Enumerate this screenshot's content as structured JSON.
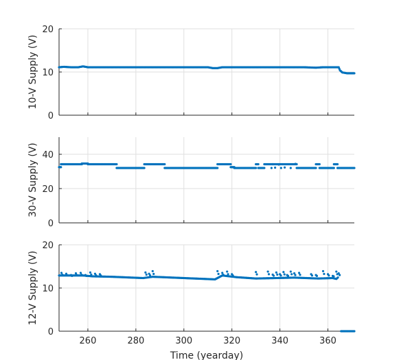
{
  "chart_data": [
    {
      "type": "scatter",
      "ylabel": "10-V Supply (V)",
      "xlabel": "",
      "xlim": [
        248,
        371
      ],
      "ylim": [
        0,
        20
      ],
      "yticks": [
        "0",
        "10",
        "20"
      ],
      "xticks": [
        "260",
        "280",
        "300",
        "320",
        "340",
        "360"
      ],
      "show_xtick_labels": false,
      "grid": true,
      "color": "#0072BD",
      "series": [
        {
          "segments": [
            [
              248,
              11.1
            ],
            [
              250,
              11.2
            ],
            [
              253,
              11.1
            ],
            [
              256,
              11.1
            ],
            [
              258,
              11.3
            ],
            [
              260,
              11.1
            ],
            [
              270,
              11.1
            ],
            [
              280,
              11.1
            ],
            [
              290,
              11.1
            ],
            [
              300,
              11.1
            ],
            [
              310,
              11.1
            ],
            [
              312,
              10.9
            ],
            [
              314,
              10.9
            ],
            [
              316,
              11.1
            ],
            [
              330,
              11.1
            ],
            [
              340,
              11.1
            ],
            [
              350,
              11.1
            ],
            [
              355,
              11.0
            ],
            [
              358,
              11.1
            ],
            [
              362,
              11.1
            ],
            [
              364.5,
              11.1
            ],
            [
              365,
              10.4
            ],
            [
              366,
              9.9
            ],
            [
              368,
              9.7
            ],
            [
              371,
              9.7
            ]
          ]
        }
      ]
    },
    {
      "type": "scatter",
      "ylabel": "30-V Supply (V)",
      "xlabel": "",
      "xlim": [
        248,
        371
      ],
      "ylim": [
        0,
        50
      ],
      "yticks": [
        "0",
        "20",
        "40"
      ],
      "xticks": [
        "260",
        "280",
        "300",
        "320",
        "340",
        "360"
      ],
      "show_xtick_labels": false,
      "grid": true,
      "color": "#0072BD",
      "series": [
        {
          "runs": [
            {
              "x0": 248.0,
              "x1": 248.8,
              "y": 32.5
            },
            {
              "x0": 248.8,
              "x1": 257.5,
              "y": 34.2
            },
            {
              "x0": 257.5,
              "x1": 260.0,
              "y": 34.6
            },
            {
              "x0": 260.0,
              "x1": 272.0,
              "y": 34.2
            },
            {
              "x0": 272.0,
              "x1": 283.5,
              "y": 32.0
            },
            {
              "x0": 283.5,
              "x1": 292.0,
              "y": 34.2
            },
            {
              "x0": 292.0,
              "x1": 314.0,
              "y": 32.0
            },
            {
              "x0": 314.0,
              "x1": 319.5,
              "y": 34.2
            },
            {
              "x0": 319.5,
              "x1": 321.0,
              "y": 32.5
            },
            {
              "x0": 321.0,
              "x1": 330.0,
              "y": 32.0
            },
            {
              "x0": 330.0,
              "x1": 331.0,
              "y": 34.2
            },
            {
              "x0": 331.0,
              "x1": 333.5,
              "y": 32.0
            },
            {
              "x0": 333.5,
              "x1": 347.0,
              "y": 34.2
            },
            {
              "x0": 347.0,
              "x1": 355.0,
              "y": 32.0
            },
            {
              "x0": 355.0,
              "x1": 356.5,
              "y": 34.2
            },
            {
              "x0": 356.5,
              "x1": 362.5,
              "y": 32.0
            },
            {
              "x0": 362.5,
              "x1": 364.0,
              "y": 34.2
            },
            {
              "x0": 364.0,
              "x1": 371.0,
              "y": 32.0
            }
          ],
          "scatter": [
            [
              336.5,
              32.0
            ],
            [
              338.0,
              32.2
            ],
            [
              340.5,
              32.0
            ],
            [
              342.0,
              32.3
            ],
            [
              344.5,
              32.0
            ],
            [
              337.0,
              34.2
            ],
            [
              339.5,
              34.0
            ],
            [
              346.5,
              34.4
            ]
          ]
        }
      ]
    },
    {
      "type": "scatter",
      "ylabel": "12-V Supply (V)",
      "xlabel": "Time (yearday)",
      "xlim": [
        248,
        371
      ],
      "ylim": [
        0,
        20
      ],
      "yticks": [
        "0",
        "10",
        "20"
      ],
      "xticks": [
        "260",
        "280",
        "300",
        "320",
        "340",
        "360"
      ],
      "show_xtick_labels": true,
      "grid": true,
      "color": "#0072BD",
      "series": [
        {
          "trend": [
            [
              248,
              12.9
            ],
            [
              258,
              12.9
            ],
            [
              262,
              12.7
            ],
            [
              270,
              12.6
            ],
            [
              283,
              12.3
            ],
            [
              287,
              12.6
            ],
            [
              300,
              12.3
            ],
            [
              313,
              12.0
            ],
            [
              316,
              12.9
            ],
            [
              322,
              12.5
            ],
            [
              330,
              12.2
            ],
            [
              346,
              12.4
            ],
            [
              356,
              12.2
            ],
            [
              362,
              12.3
            ],
            [
              363.5,
              12.1
            ],
            [
              364.5,
              12.6
            ]
          ],
          "spikes": [
            [
              249,
              13.5
            ],
            [
              251,
              13.3
            ],
            [
              253,
              13.0
            ],
            [
              255,
              13.4
            ],
            [
              257,
              13.5
            ],
            [
              259,
              13.0
            ],
            [
              261,
              13.6
            ],
            [
              263,
              13.3
            ],
            [
              265,
              13.2
            ],
            [
              284,
              13.6
            ],
            [
              285.5,
              13.3
            ],
            [
              287,
              13.9
            ],
            [
              314,
              13.9
            ],
            [
              316,
              13.5
            ],
            [
              318,
              13.8
            ],
            [
              320,
              13.2
            ],
            [
              330,
              13.7
            ],
            [
              335,
              13.8
            ],
            [
              337,
              13.1
            ],
            [
              338.5,
              13.6
            ],
            [
              340,
              13.2
            ],
            [
              341.5,
              13.7
            ],
            [
              343,
              13.0
            ],
            [
              344.5,
              13.8
            ],
            [
              346,
              13.4
            ],
            [
              348,
              13.5
            ],
            [
              353,
              13.2
            ],
            [
              355,
              13.0
            ],
            [
              358,
              13.9
            ],
            [
              360,
              13.2
            ],
            [
              362,
              12.8
            ],
            [
              363.5,
              13.8
            ],
            [
              364.5,
              13.4
            ]
          ],
          "tail": [
            [
              365.5,
              0.0
            ],
            [
              371,
              0.0
            ]
          ]
        }
      ]
    }
  ]
}
